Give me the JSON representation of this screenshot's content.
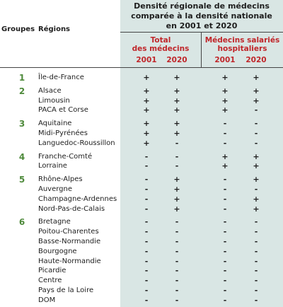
{
  "table": {
    "title_lines": [
      "Densité régionale de médecins",
      "comparée à la densité nationale",
      "en 2001 et 2020"
    ],
    "col_groupes": "Groupes",
    "col_regions": "Régions",
    "group_total_lines": [
      "Total",
      "des médecins"
    ],
    "group_salaries_lines": [
      "Médecins salariés",
      "hospitaliers"
    ],
    "years": [
      "2001",
      "2020",
      "2001",
      "2020"
    ],
    "colors": {
      "panel": "#d9e6e4",
      "red": "#c0262a",
      "green": "#4e8a3b"
    },
    "rows": [
      {
        "group": "1",
        "region": "Île-de-France",
        "marks": [
          "+",
          "+",
          "+",
          "+"
        ]
      },
      {
        "group": "2",
        "region": "Alsace",
        "marks": [
          "+",
          "+",
          "+",
          "+"
        ]
      },
      {
        "group": "",
        "region": "Limousin",
        "marks": [
          "+",
          "+",
          "+",
          "+"
        ]
      },
      {
        "group": "",
        "region": "PACA et Corse",
        "marks": [
          "+",
          "+",
          "+",
          "-"
        ]
      },
      {
        "group": "3",
        "region": "Aquitaine",
        "marks": [
          "+",
          "+",
          "-",
          "-"
        ]
      },
      {
        "group": "",
        "region": "Midi-Pyrénées",
        "marks": [
          "+",
          "+",
          "-",
          "-"
        ]
      },
      {
        "group": "",
        "region": "Languedoc-Roussillon",
        "marks": [
          "+",
          "-",
          "-",
          "-"
        ]
      },
      {
        "group": "4",
        "region": "Franche-Comté",
        "marks": [
          "-",
          "-",
          "+",
          "+"
        ]
      },
      {
        "group": "",
        "region": "Lorraine",
        "marks": [
          "-",
          "-",
          "+",
          "+"
        ]
      },
      {
        "group": "5",
        "region": "Rhône-Alpes",
        "marks": [
          "-",
          "+",
          "-",
          "+"
        ]
      },
      {
        "group": "",
        "region": "Auvergne",
        "marks": [
          "-",
          "+",
          "-",
          "-"
        ]
      },
      {
        "group": "",
        "region": "Champagne-Ardennes",
        "marks": [
          "-",
          "+",
          "-",
          "+"
        ]
      },
      {
        "group": "",
        "region": "Nord-Pas-de-Calais",
        "marks": [
          "-",
          "+",
          "-",
          "+"
        ]
      },
      {
        "group": "6",
        "region": "Bretagne",
        "marks": [
          "-",
          "-",
          "-",
          "-"
        ]
      },
      {
        "group": "",
        "region": "Poitou-Charentes",
        "marks": [
          "-",
          "-",
          "-",
          "-"
        ]
      },
      {
        "group": "",
        "region": "Basse-Normandie",
        "marks": [
          "-",
          "-",
          "-",
          "-"
        ]
      },
      {
        "group": "",
        "region": "Bourgogne",
        "marks": [
          "-",
          "-",
          "-",
          "-"
        ]
      },
      {
        "group": "",
        "region": "Haute-Normandie",
        "marks": [
          "-",
          "-",
          "-",
          "-"
        ]
      },
      {
        "group": "",
        "region": "Picardie",
        "marks": [
          "-",
          "-",
          "-",
          "-"
        ]
      },
      {
        "group": "",
        "region": "Centre",
        "marks": [
          "-",
          "-",
          "-",
          "-"
        ]
      },
      {
        "group": "",
        "region": "Pays de la Loire",
        "marks": [
          "-",
          "-",
          "-",
          "-"
        ]
      },
      {
        "group": "",
        "region": "DOM",
        "marks": [
          "-",
          "-",
          "-",
          "-"
        ]
      }
    ]
  }
}
